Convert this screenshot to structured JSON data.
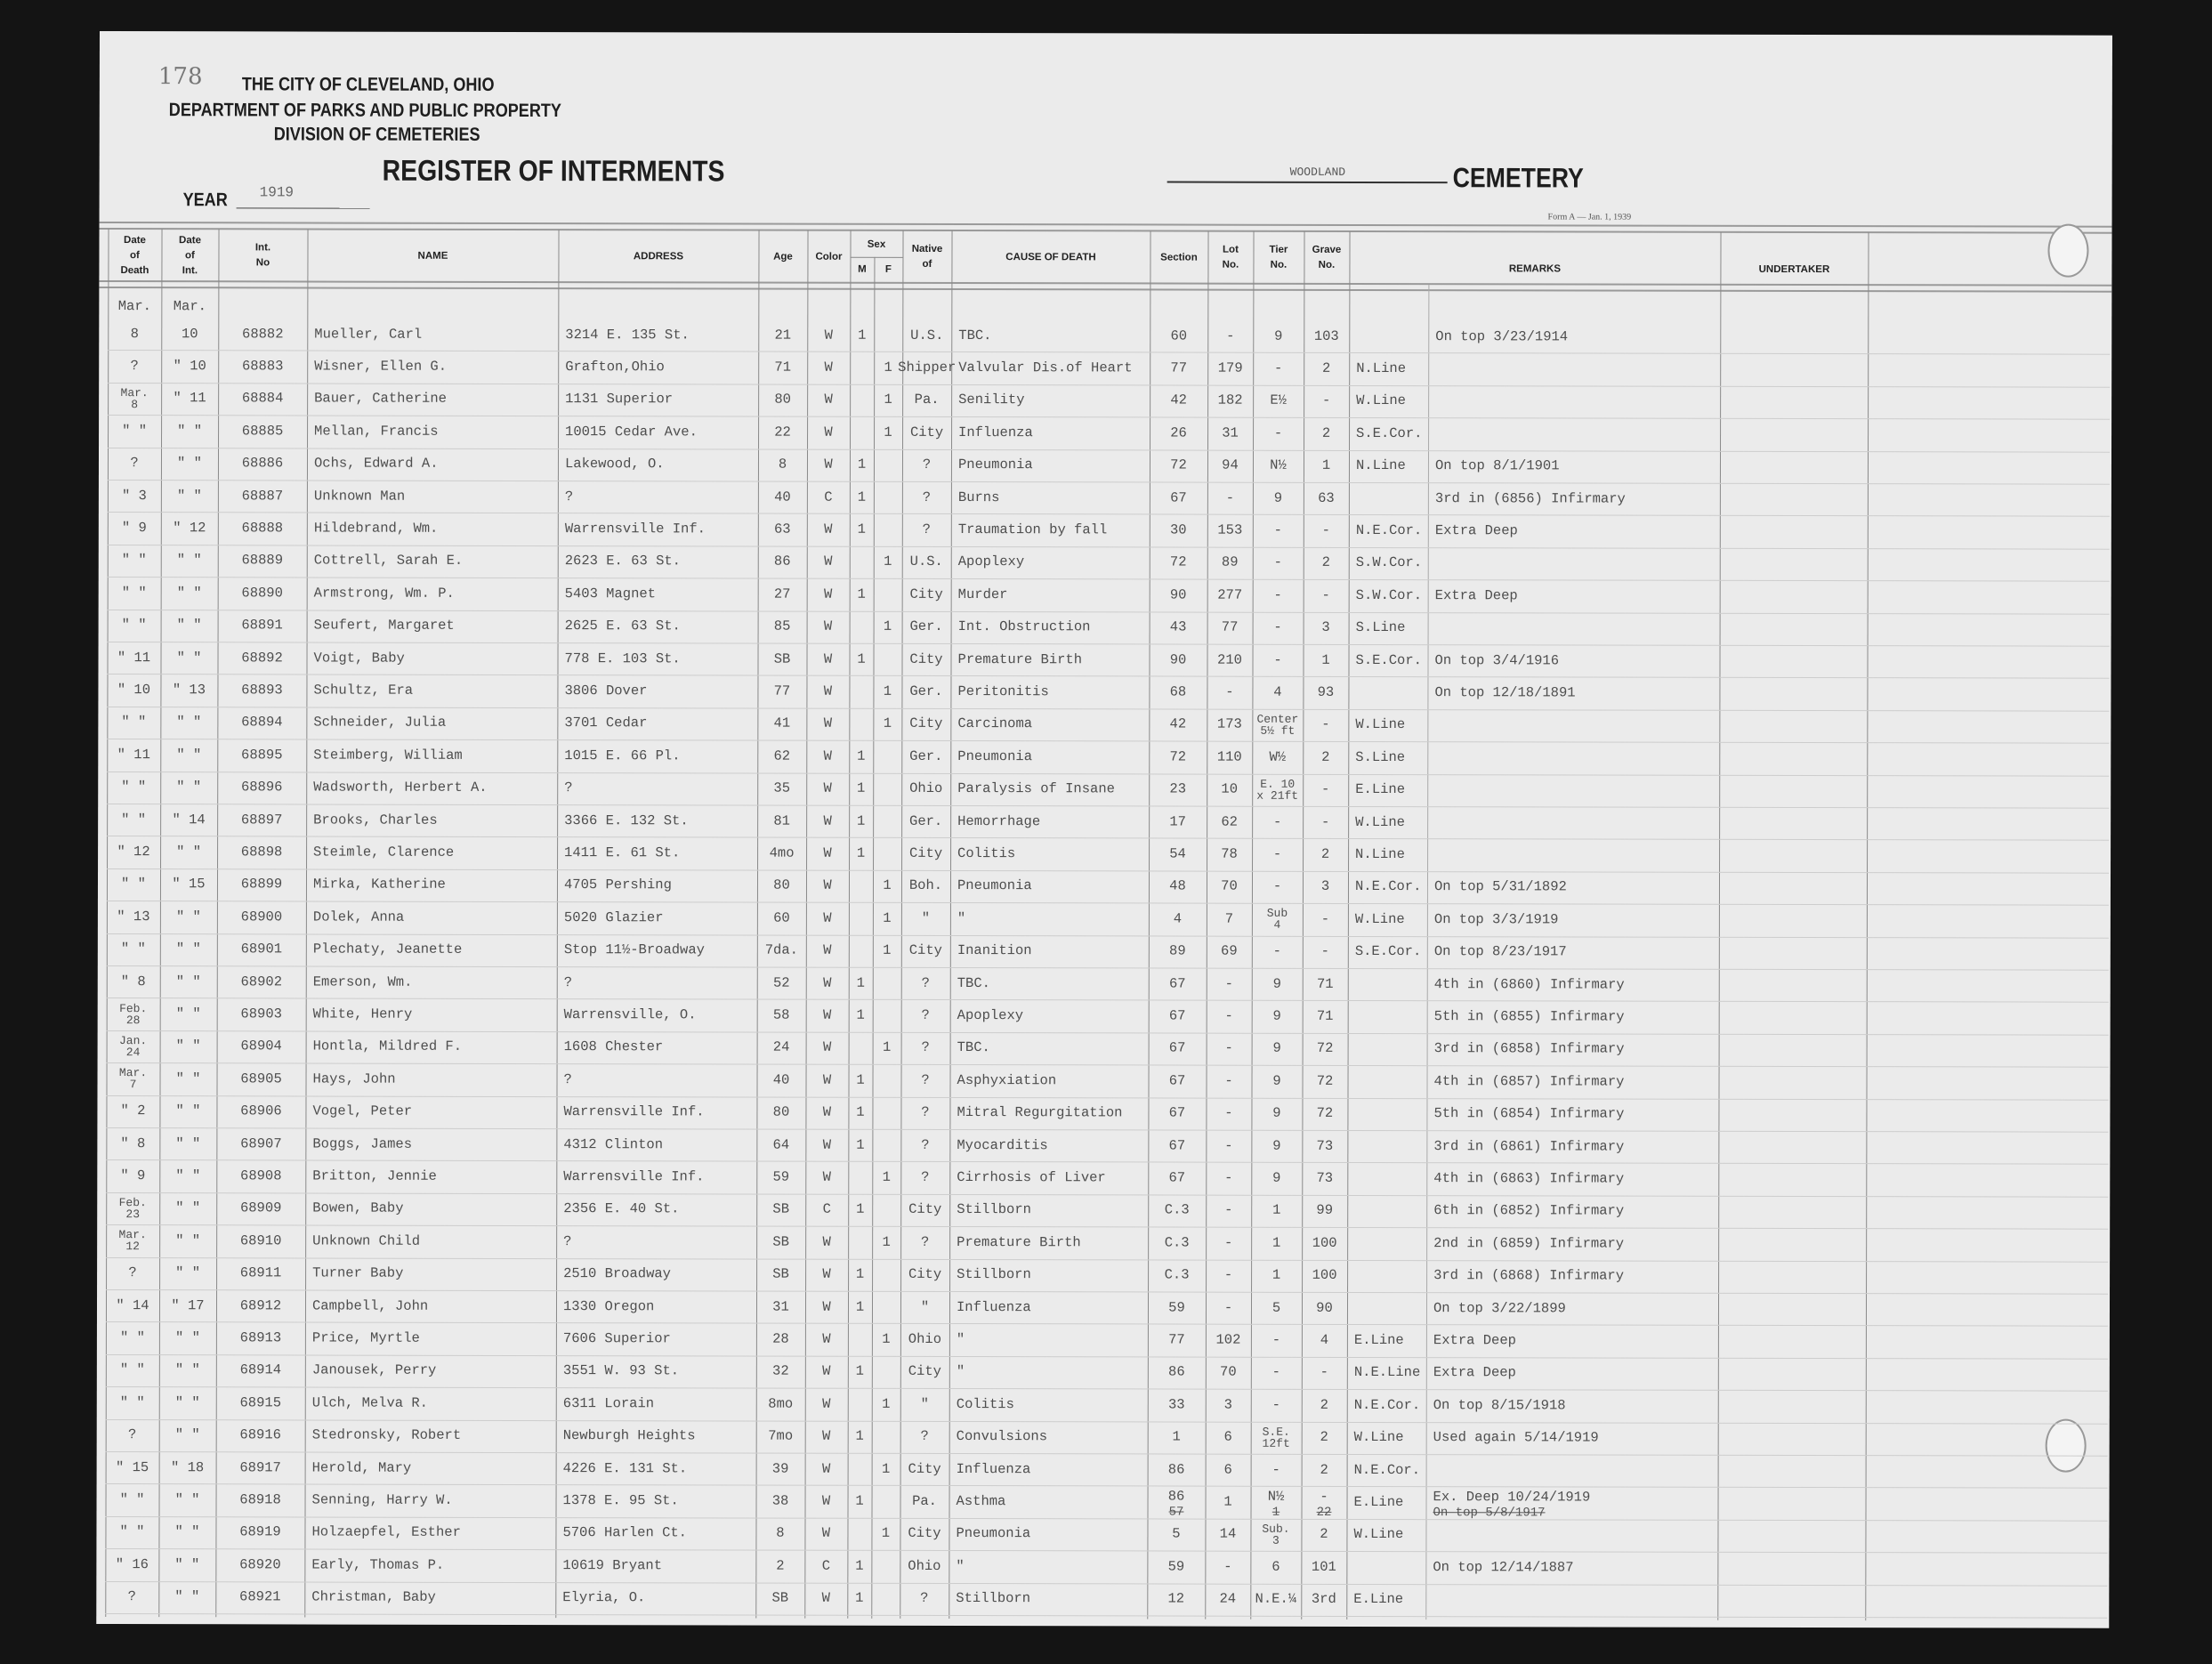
{
  "page_number": "178",
  "header": {
    "city": "THE CITY OF CLEVELAND, OHIO",
    "department": "DEPARTMENT OF PARKS AND PUBLIC PROPERTY",
    "division": "DIVISION OF CEMETERIES",
    "title": "REGISTER OF INTERMENTS",
    "year_label": "YEAR",
    "year": "1919",
    "cemetery_name": "WOODLAND",
    "cemetery_label": "CEMETERY",
    "form": "Form A — Jan. 1, 1939"
  },
  "table": {
    "headers": {
      "date_of_death": "Date\nof\nDeath",
      "date_of_int": "Date\nof\nInt.",
      "int_no": "Int.\nNo",
      "name": "NAME",
      "address": "ADDRESS",
      "age": "Age",
      "color": "Color",
      "sex": "Sex",
      "sex_m": "M",
      "sex_f": "F",
      "native": "Native\nof",
      "cause": "CAUSE OF DEATH",
      "section": "Section",
      "lot": "Lot\nNo.",
      "tier": "Tier\nNo.",
      "grave": "Grave\nNo.",
      "remarks": "REMARKS",
      "undertaker": "UNDERTAKER"
    },
    "month_death": "Mar.",
    "month_int": "Mar.",
    "rows": [
      [
        "8",
        "10",
        "68882",
        "Mueller, Carl",
        "3214 E. 135 St.",
        "21",
        "W",
        "1",
        "",
        "U.S.",
        "TBC.",
        "60",
        "-",
        "9",
        "103",
        "",
        "On top 3/23/1914"
      ],
      [
        "?",
        "\" 10",
        "68883",
        "Wisner, Ellen G.",
        "Grafton,Ohio",
        "71",
        "W",
        "",
        "1",
        "Shipper",
        "Valvular Dis.of Heart",
        "77",
        "179",
        "-",
        "2",
        "N.Line",
        ""
      ],
      [
        "Mar.\n8",
        "\" 11",
        "68884",
        "Bauer, Catherine",
        "1131 Superior",
        "80",
        "W",
        "",
        "1",
        "Pa.",
        "Senility",
        "42",
        "182",
        "E½",
        "-",
        "W.Line",
        ""
      ],
      [
        "\" \"",
        "\" \"",
        "68885",
        "Mellan, Francis",
        "10015 Cedar Ave.",
        "22",
        "W",
        "",
        "1",
        "City",
        "Influenza",
        "26",
        "31",
        "-",
        "2",
        "S.E.Cor.",
        ""
      ],
      [
        "?",
        "\" \"",
        "68886",
        "Ochs, Edward A.",
        "Lakewood, O.",
        "8",
        "W",
        "1",
        "",
        "?",
        "Pneumonia",
        "72",
        "94",
        "N½",
        "1",
        "N.Line",
        "On top 8/1/1901"
      ],
      [
        "\" 3",
        "\" \"",
        "68887",
        "Unknown Man",
        "?",
        "40",
        "C",
        "1",
        "",
        "?",
        "Burns",
        "67",
        "-",
        "9",
        "63",
        "",
        "3rd in (6856) Infirmary"
      ],
      [
        "\" 9",
        "\" 12",
        "68888",
        "Hildebrand, Wm.",
        "Warrensville Inf.",
        "63",
        "W",
        "1",
        "",
        "?",
        "Traumation by fall",
        "30",
        "153",
        "-",
        "-",
        "N.E.Cor.",
        "Extra Deep"
      ],
      [
        "\" \"",
        "\" \"",
        "68889",
        "Cottrell, Sarah E.",
        "2623 E. 63 St.",
        "86",
        "W",
        "",
        "1",
        "U.S.",
        "Apoplexy",
        "72",
        "89",
        "-",
        "2",
        "S.W.Cor.",
        ""
      ],
      [
        "\" \"",
        "\" \"",
        "68890",
        "Armstrong, Wm. P.",
        "5403 Magnet",
        "27",
        "W",
        "1",
        "",
        "City",
        "Murder",
        "90",
        "277",
        "-",
        "-",
        "S.W.Cor.",
        "Extra Deep"
      ],
      [
        "\" \"",
        "\" \"",
        "68891",
        "Seufert, Margaret",
        "2625 E. 63 St.",
        "85",
        "W",
        "",
        "1",
        "Ger.",
        "Int. Obstruction",
        "43",
        "77",
        "-",
        "3",
        "S.Line",
        ""
      ],
      [
        "\" 11",
        "\" \"",
        "68892",
        "Voigt, Baby",
        "778 E. 103 St.",
        "SB",
        "W",
        "1",
        "",
        "City",
        "Premature Birth",
        "90",
        "210",
        "-",
        "1",
        "S.E.Cor.",
        "On top 3/4/1916"
      ],
      [
        "\" 10",
        "\" 13",
        "68893",
        "Schultz, Era",
        "3806 Dover",
        "77",
        "W",
        "",
        "1",
        "Ger.",
        "Peritonitis",
        "68",
        "-",
        "4",
        "93",
        "",
        "On top 12/18/1891"
      ],
      [
        "\" \"",
        "\" \"",
        "68894",
        "Schneider, Julia",
        "3701 Cedar",
        "41",
        "W",
        "",
        "1",
        "City",
        "Carcinoma",
        "42",
        "173",
        "Center\n5½ ft",
        "-",
        "W.Line",
        ""
      ],
      [
        "\" 11",
        "\" \"",
        "68895",
        "Steimberg, William",
        "1015 E. 66 Pl.",
        "62",
        "W",
        "1",
        "",
        "Ger.",
        "Pneumonia",
        "72",
        "110",
        "W½",
        "2",
        "S.Line",
        ""
      ],
      [
        "\" \"",
        "\" \"",
        "68896",
        "Wadsworth, Herbert A.",
        "?",
        "35",
        "W",
        "1",
        "",
        "Ohio",
        "Paralysis of Insane",
        "23",
        "10",
        "E. 10\nx 21ft",
        "-",
        "E.Line",
        ""
      ],
      [
        "\" \"",
        "\" 14",
        "68897",
        "Brooks, Charles",
        "3366 E. 132 St.",
        "81",
        "W",
        "1",
        "",
        "Ger.",
        "Hemorrhage",
        "17",
        "62",
        "-",
        "-",
        "W.Line",
        ""
      ],
      [
        "\" 12",
        "\" \"",
        "68898",
        "Steimle, Clarence",
        "1411 E. 61 St.",
        "4mo",
        "W",
        "1",
        "",
        "City",
        "Colitis",
        "54",
        "78",
        "-",
        "2",
        "N.Line",
        ""
      ],
      [
        "\" \"",
        "\" 15",
        "68899",
        "Mirka, Katherine",
        "4705 Pershing",
        "80",
        "W",
        "",
        "1",
        "Boh.",
        "Pneumonia",
        "48",
        "70",
        "-",
        "3",
        "N.E.Cor.",
        "On top 5/31/1892"
      ],
      [
        "\" 13",
        "\" \"",
        "68900",
        "Dolek, Anna",
        "5020 Glazier",
        "60",
        "W",
        "",
        "1",
        "\"",
        "\"",
        "4",
        "7",
        "Sub\n4",
        "-",
        "W.Line",
        "On top 3/3/1919"
      ],
      [
        "\" \"",
        "\" \"",
        "68901",
        "Plechaty, Jeanette",
        "Stop 11½-Broadway",
        "7da.",
        "W",
        "",
        "1",
        "City",
        "Inanition",
        "89",
        "69",
        "-",
        "-",
        "S.E.Cor.",
        "On top 8/23/1917"
      ],
      [
        "\" 8",
        "\" \"",
        "68902",
        "Emerson, Wm.",
        "?",
        "52",
        "W",
        "1",
        "",
        "?",
        "TBC.",
        "67",
        "-",
        "9",
        "71",
        "",
        "4th in (6860) Infirmary"
      ],
      [
        "Feb.\n28",
        "\" \"",
        "68903",
        "White, Henry",
        "Warrensville, O.",
        "58",
        "W",
        "1",
        "",
        "?",
        "Apoplexy",
        "67",
        "-",
        "9",
        "71",
        "",
        "5th in (6855) Infirmary"
      ],
      [
        "Jan.\n24",
        "\" \"",
        "68904",
        "Hontla, Mildred F.",
        "1608 Chester",
        "24",
        "W",
        "",
        "1",
        "?",
        "TBC.",
        "67",
        "-",
        "9",
        "72",
        "",
        "3rd in (6858) Infirmary"
      ],
      [
        "Mar.\n7",
        "\" \"",
        "68905",
        "Hays, John",
        "?",
        "40",
        "W",
        "1",
        "",
        "?",
        "Asphyxiation",
        "67",
        "-",
        "9",
        "72",
        "",
        "4th in (6857) Infirmary"
      ],
      [
        "\" 2",
        "\" \"",
        "68906",
        "Vogel, Peter",
        "Warrensville Inf.",
        "80",
        "W",
        "1",
        "",
        "?",
        "Mitral Regurgitation",
        "67",
        "-",
        "9",
        "72",
        "",
        "5th in (6854) Infirmary"
      ],
      [
        "\" 8",
        "\" \"",
        "68907",
        "Boggs, James",
        "4312 Clinton",
        "64",
        "W",
        "1",
        "",
        "?",
        "Myocarditis",
        "67",
        "-",
        "9",
        "73",
        "",
        "3rd in (6861) Infirmary"
      ],
      [
        "\" 9",
        "\" \"",
        "68908",
        "Britton, Jennie",
        "Warrensville Inf.",
        "59",
        "W",
        "",
        "1",
        "?",
        "Cirrhosis of Liver",
        "67",
        "-",
        "9",
        "73",
        "",
        "4th in (6863) Infirmary"
      ],
      [
        "Feb.\n23",
        "\" \"",
        "68909",
        "Bowen, Baby",
        "2356 E. 40 St.",
        "SB",
        "C",
        "1",
        "",
        "City",
        "Stillborn",
        "C.3",
        "-",
        "1",
        "99",
        "",
        "6th in (6852) Infirmary"
      ],
      [
        "Mar.\n12",
        "\" \"",
        "68910",
        "Unknown Child",
        "?",
        "SB",
        "W",
        "",
        "1",
        "?",
        "Premature Birth",
        "C.3",
        "-",
        "1",
        "100",
        "",
        "2nd in (6859) Infirmary"
      ],
      [
        "?",
        "\" \"",
        "68911",
        "Turner Baby",
        "2510 Broadway",
        "SB",
        "W",
        "1",
        "",
        "City",
        "Stillborn",
        "C.3",
        "-",
        "1",
        "100",
        "",
        "3rd in (6868) Infirmary"
      ],
      [
        "\" 14",
        "\" 17",
        "68912",
        "Campbell, John",
        "1330 Oregon",
        "31",
        "W",
        "1",
        "",
        "\"",
        "Influenza",
        "59",
        "-",
        "5",
        "90",
        "",
        "On top 3/22/1899"
      ],
      [
        "\" \"",
        "\" \"",
        "68913",
        "Price, Myrtle",
        "7606 Superior",
        "28",
        "W",
        "",
        "1",
        "Ohio",
        "\"",
        "77",
        "102",
        "-",
        "4",
        "E.Line",
        "Extra Deep"
      ],
      [
        "\" \"",
        "\" \"",
        "68914",
        "Janousek, Perry",
        "3551 W. 93 St.",
        "32",
        "W",
        "1",
        "",
        "City",
        "\"",
        "86",
        "70",
        "-",
        "-",
        "N.E.Line",
        "Extra Deep"
      ],
      [
        "\" \"",
        "\" \"",
        "68915",
        "Ulch, Melva R.",
        "6311 Lorain",
        "8mo",
        "W",
        "",
        "1",
        "\"",
        "Colitis",
        "33",
        "3",
        "-",
        "2",
        "N.E.Cor.",
        "On top 8/15/1918"
      ],
      [
        "?",
        "\" \"",
        "68916",
        "Stedronsky, Robert",
        "Newburgh Heights",
        "7mo",
        "W",
        "1",
        "",
        "?",
        "Convulsions",
        "1",
        "6",
        "S.E.\n12ft",
        "2",
        "W.Line",
        "Used again 5/14/1919"
      ],
      [
        "\" 15",
        "\" 18",
        "68917",
        "Herold, Mary",
        "4226 E. 131 St.",
        "39",
        "W",
        "",
        "1",
        "City",
        "Influenza",
        "86",
        "6",
        "-",
        "2",
        "N.E.Cor.",
        ""
      ],
      [
        "\" \"",
        "\" \"",
        "68918",
        "Senning, Harry W.",
        "1378 E. 95 St.",
        "38",
        "W",
        "1",
        "",
        "Pa.",
        "Asthma",
        "86",
        "1",
        "N½",
        "-",
        "E.Line",
        "Ex. Deep 10/24/1919"
      ],
      [
        "\" \"",
        "\" \"",
        "68919",
        "Holzaepfel, Esther",
        "5706 Harlen Ct.",
        "8",
        "W",
        "",
        "1",
        "City",
        "Pneumonia",
        "5",
        "14",
        "Sub.\n3",
        "2",
        "W.Line",
        ""
      ],
      [
        "\" 16",
        "\" \"",
        "68920",
        "Early, Thomas P.",
        "10619 Bryant",
        "2",
        "C",
        "1",
        "",
        "Ohio",
        "\"",
        "59",
        "-",
        "6",
        "101",
        "",
        "On top 12/14/1887"
      ],
      [
        "?",
        "\" \"",
        "68921",
        "Christman, Baby",
        "Elyria, O.",
        "SB",
        "W",
        "1",
        "",
        "?",
        "Stillborn",
        "12",
        "24",
        "N.E.¼",
        "3rd",
        "E.Line",
        ""
      ]
    ],
    "corrections": {
      "36": {
        "11": "57",
        "13": "1",
        "14": "22",
        "16": "On top 5/8/1917"
      }
    }
  }
}
